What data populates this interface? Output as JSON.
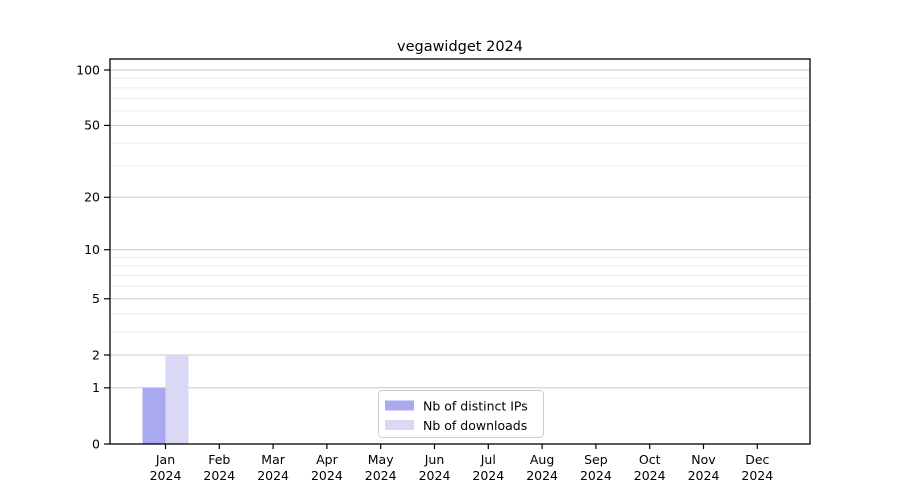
{
  "chart_data": {
    "type": "bar",
    "title": "vegawidget 2024",
    "categories": [
      "Jan 2024",
      "Feb 2024",
      "Mar 2024",
      "Apr 2024",
      "May 2024",
      "Jun 2024",
      "Jul 2024",
      "Aug 2024",
      "Sep 2024",
      "Oct 2024",
      "Nov 2024",
      "Dec 2024"
    ],
    "series": [
      {
        "name": "Nb of distinct IPs",
        "color": "#a9a9f0",
        "values": [
          1,
          0,
          0,
          0,
          0,
          0,
          0,
          0,
          0,
          0,
          0,
          0
        ]
      },
      {
        "name": "Nb of downloads",
        "color": "#d9d9f6",
        "values": [
          2,
          0,
          0,
          0,
          0,
          0,
          0,
          0,
          0,
          0,
          0,
          0
        ]
      }
    ],
    "y_axis": {
      "scale": "symlog",
      "ticks": [
        0,
        1,
        2,
        5,
        10,
        20,
        50,
        100
      ],
      "tick_labels": [
        "0",
        "1",
        "2",
        "5",
        "10",
        "20",
        "50",
        "100"
      ],
      "minor_gridlines": [
        3,
        4,
        6,
        7,
        8,
        9,
        30,
        40,
        60,
        70,
        80,
        90
      ],
      "range": [
        0,
        115
      ]
    },
    "x_axis": {
      "year_line": "2024"
    },
    "legend": {
      "position": "bottom-center",
      "items": [
        "Nb of distinct IPs",
        "Nb of downloads"
      ]
    },
    "grid": true,
    "colors": {
      "grid_major": "#c9c9c9",
      "grid_minor": "#ebebeb",
      "axis": "#000000",
      "legend_border": "#cccccc",
      "background": "#ffffff"
    }
  }
}
